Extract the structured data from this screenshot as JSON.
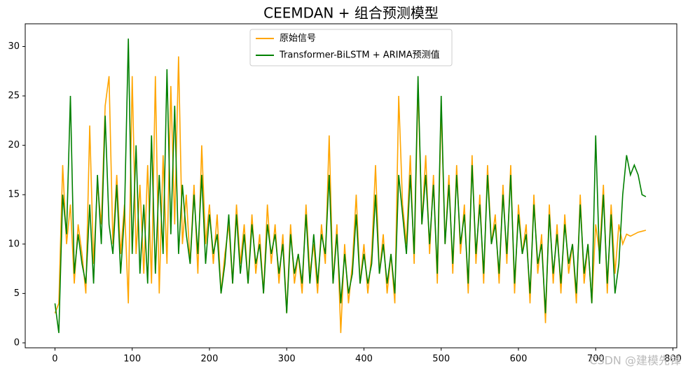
{
  "chart_data": {
    "type": "line",
    "title": "CEEMDAN + 组合预测模型",
    "watermark": "CSDN @建模先锋",
    "x": [
      0,
      5,
      10,
      15,
      20,
      25,
      30,
      35,
      40,
      45,
      50,
      55,
      60,
      65,
      70,
      75,
      80,
      85,
      90,
      95,
      100,
      105,
      110,
      115,
      120,
      125,
      130,
      135,
      140,
      145,
      150,
      155,
      160,
      165,
      170,
      175,
      180,
      185,
      190,
      195,
      200,
      205,
      210,
      215,
      220,
      225,
      230,
      235,
      240,
      245,
      250,
      255,
      260,
      265,
      270,
      275,
      280,
      285,
      290,
      295,
      300,
      305,
      310,
      315,
      320,
      325,
      330,
      335,
      340,
      345,
      350,
      355,
      360,
      365,
      370,
      375,
      380,
      385,
      390,
      395,
      400,
      405,
      410,
      415,
      420,
      425,
      430,
      435,
      440,
      445,
      450,
      455,
      460,
      465,
      470,
      475,
      480,
      485,
      490,
      495,
      500,
      505,
      510,
      515,
      520,
      525,
      530,
      535,
      540,
      545,
      550,
      555,
      560,
      565,
      570,
      575,
      580,
      585,
      590,
      595,
      600,
      605,
      610,
      615,
      620,
      625,
      630,
      635,
      640,
      645,
      650,
      655,
      660,
      665,
      670,
      675,
      680,
      685,
      690,
      695,
      700,
      705,
      710,
      715,
      720,
      725,
      730,
      735,
      740,
      745,
      750,
      755,
      760,
      765
    ],
    "series": [
      {
        "name": "原始信号",
        "color": "#ffa500",
        "values": [
          3,
          4,
          18,
          10,
          14,
          6,
          12,
          9,
          5,
          22,
          8,
          16,
          12,
          24,
          27,
          10,
          17,
          9,
          14,
          4,
          27,
          9,
          16,
          7,
          18,
          6,
          27,
          5,
          19,
          8,
          26,
          12,
          29,
          10,
          15,
          8,
          16,
          7,
          20,
          10,
          14,
          8,
          13,
          5,
          9,
          12,
          6,
          14,
          8,
          12,
          6,
          13,
          7,
          11,
          5,
          14,
          8,
          12,
          6,
          11,
          3,
          12,
          6,
          9,
          5,
          14,
          7,
          10,
          5,
          12,
          8,
          21,
          6,
          12,
          1,
          10,
          4,
          8,
          15,
          6,
          10,
          5,
          9,
          18,
          7,
          11,
          5,
          9,
          4,
          25,
          14,
          10,
          19,
          8,
          26,
          12,
          19,
          9,
          17,
          6,
          24,
          10,
          17,
          7,
          18,
          9,
          14,
          5,
          19,
          8,
          15,
          6,
          18,
          10,
          13,
          6,
          16,
          8,
          18,
          5,
          14,
          9,
          12,
          4,
          15,
          7,
          11,
          2,
          14,
          6,
          12,
          5,
          13,
          7,
          10,
          4,
          15,
          6,
          10,
          4,
          12,
          9,
          16,
          5,
          14,
          7,
          12,
          10,
          11,
          10.8,
          11,
          11.2,
          11.3,
          11.4
        ]
      },
      {
        "name": "Transformer-BiLSTM + ARIMA预测值",
        "color": "#008000",
        "values": [
          4,
          1,
          15,
          11,
          25,
          7,
          11,
          8,
          6,
          14,
          6,
          17,
          10,
          23,
          12,
          9,
          16,
          7,
          13,
          30.8,
          9,
          20,
          7,
          14,
          6,
          21,
          7,
          17,
          9,
          27.7,
          11,
          24,
          9,
          16,
          11,
          8,
          15,
          9,
          17,
          8,
          13,
          9,
          11,
          5,
          8,
          13,
          6,
          13,
          7,
          11,
          6,
          12,
          8,
          10,
          5,
          12,
          9,
          11,
          7,
          10,
          3,
          11,
          7,
          9,
          6,
          13,
          6,
          11,
          6,
          11,
          9,
          17,
          6,
          11,
          4,
          9,
          5,
          7,
          13,
          6,
          9,
          6,
          8,
          15,
          7,
          10,
          6,
          9,
          5,
          17,
          13,
          9,
          17,
          9,
          27,
          12,
          17,
          10,
          16,
          7,
          25,
          10,
          16,
          8,
          17,
          10,
          13,
          6,
          18,
          9,
          14,
          7,
          17,
          10,
          12,
          7,
          15,
          9,
          17,
          6,
          13,
          9,
          11,
          5,
          14,
          8,
          10,
          3,
          13,
          7,
          11,
          6,
          12,
          8,
          10,
          5,
          14,
          7,
          10,
          4,
          21,
          8,
          15,
          6,
          13,
          5,
          8,
          15,
          19,
          17,
          18,
          17,
          15,
          14.8
        ]
      }
    ],
    "xlim": [
      -38.5,
      805
    ],
    "ylim": [
      -0.5,
      32.3
    ],
    "xticks": [
      0,
      100,
      200,
      300,
      400,
      500,
      600,
      700,
      800
    ],
    "yticks": [
      0,
      5,
      10,
      15,
      20,
      25,
      30
    ],
    "legend": "upper center",
    "grid": false
  }
}
